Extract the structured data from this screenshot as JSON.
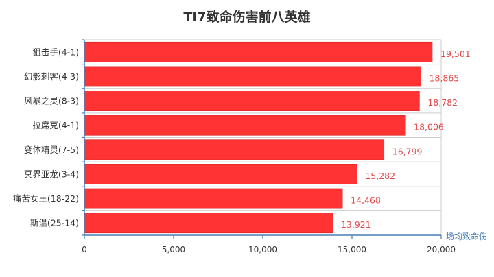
{
  "chart_data": {
    "type": "bar",
    "orientation": "horizontal",
    "title": "TI7致命伤害前八英雄",
    "xlabel": "场均致命伤",
    "ylabel": "",
    "categories": [
      "狙击手(4-1)",
      "幻影刺客(4-3)",
      "风暴之灵(8-3)",
      "拉席克(4-1)",
      "变体精灵(7-5)",
      "冥界亚龙(3-4)",
      "痛苦女王(18-22)",
      "斯温(25-14)"
    ],
    "values": [
      19501,
      18865,
      18782,
      18006,
      16799,
      15282,
      14468,
      13921
    ],
    "value_labels": [
      "19,501",
      "18,865",
      "18,782",
      "18,006",
      "16,799",
      "15,282",
      "14,468",
      "13,921"
    ],
    "xlim": [
      0,
      20000
    ],
    "xticks": [
      0,
      5000,
      10000,
      15000,
      20000
    ],
    "xtick_labels": [
      "0",
      "5,000",
      "10,000",
      "15,000",
      "20,000"
    ],
    "grid": true,
    "legend": "none",
    "colors": {
      "bar": "#ff3333",
      "bar_border": "#d22222",
      "value_label": "#e04a4a",
      "axis": "#4a7fb5",
      "axis_name": "#4a7fb5",
      "grid": "#cccccc",
      "text": "#333333"
    }
  }
}
